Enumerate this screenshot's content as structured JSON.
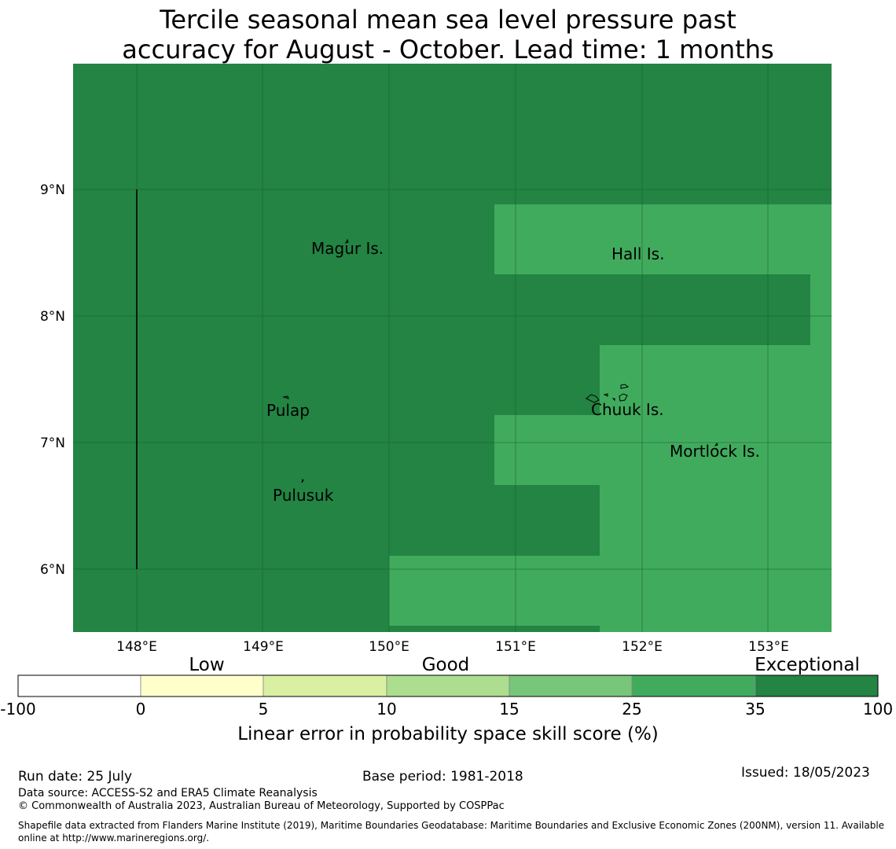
{
  "title": {
    "line1": "Tercile seasonal mean sea level pressure past",
    "line2": "accuracy for August - October. Lead time: 1 months"
  },
  "map": {
    "lon_range": [
      147.5,
      153.5
    ],
    "lat_range": [
      5.5,
      10.0
    ],
    "lon_ticks": [
      "148°E",
      "149°E",
      "150°E",
      "151°E",
      "152°E",
      "153°E"
    ],
    "lat_ticks": [
      "9°N",
      "8°N",
      "7°N",
      "6°N"
    ],
    "base_color": "#238443",
    "highlight_color": "#41ab5d",
    "grid": true,
    "places": [
      {
        "name": "Magur Is.",
        "lon": 149.7,
        "lat": 8.5
      },
      {
        "name": "Hall Is.",
        "lon": 151.9,
        "lat": 8.45
      },
      {
        "name": "Pulap",
        "lon": 149.2,
        "lat": 7.25
      },
      {
        "name": "Chuuk Is.",
        "lon": 151.85,
        "lat": 7.35
      },
      {
        "name": "Mortlock Is.",
        "lon": 152.6,
        "lat": 6.95
      },
      {
        "name": "Pulusuk",
        "lon": 149.3,
        "lat": 6.6
      }
    ]
  },
  "legend": {
    "categories": [
      "Low",
      "Good",
      "Exceptional"
    ],
    "ticks": [
      "-100",
      "0",
      "5",
      "10",
      "15",
      "25",
      "35",
      "100"
    ],
    "colors": [
      "#ffffff",
      "#ffffcc",
      "#d9f0a3",
      "#addd8e",
      "#78c679",
      "#41ab5d",
      "#238443"
    ],
    "label": "Linear error in probability space skill score (%)"
  },
  "footer": {
    "run_date": "Run date: 25 July",
    "base_period": "Base period: 1981-2018",
    "issued": "Issued: 18/05/2023",
    "data_source": "Data source: ACCESS-S2 and ERA5 Climate Reanalysis",
    "copyright": "© Commonwealth of Australia 2023, Australian Bureau of Meteorology, Supported by COSPPac",
    "shapefile": "Shapefile data extracted from Flanders Marine Institute (2019), Maritime Boundaries Geodatabase: Maritime Boundaries and Exclusive Economic Zones (200NM), version 11. Available online at http://www.marineregions.org/."
  }
}
